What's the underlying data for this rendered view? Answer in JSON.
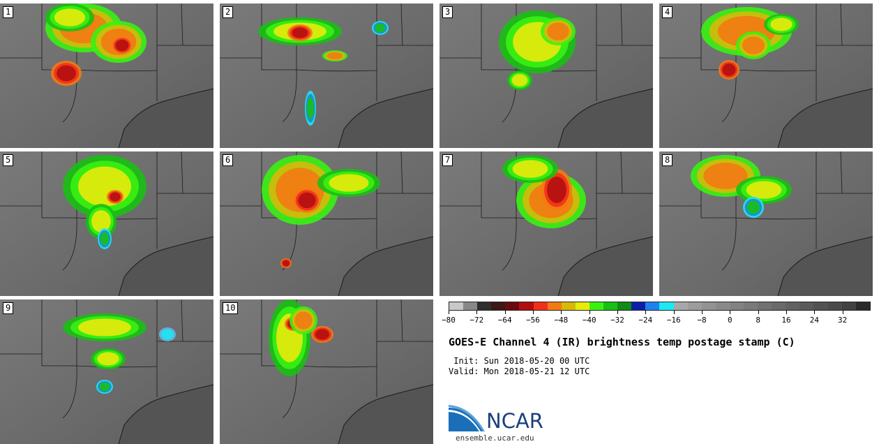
{
  "title": "GOES-E Channel 4 (IR) brightness temp postage stamp (C)",
  "init_line": " Init: Sun 2018-05-20 00 UTC",
  "valid_line": "Valid: Mon 2018-05-21 12 UTC",
  "org_name": "NCAR",
  "site": "ensemble.ucar.edu",
  "colorbar": {
    "min": -80,
    "max": 40,
    "step": 4,
    "colors": [
      "#c8c8c8",
      "#888888",
      "#2e2e2e",
      "#3c1717",
      "#6a0a0a",
      "#b10f0f",
      "#f2301a",
      "#f27a12",
      "#d6b90b",
      "#e8ea0c",
      "#39f212",
      "#18c012",
      "#108a18",
      "#0f1ea8",
      "#1e82ee",
      "#1de8f0",
      "#a8a8a8",
      "#9c9c9c",
      "#939393",
      "#8a8a8a",
      "#828282",
      "#7a7a7a",
      "#727272",
      "#6a6a6a",
      "#626262",
      "#5a5a5a",
      "#525252",
      "#4a4a4a",
      "#424242",
      "#2a2a2a"
    ],
    "tick_labels": [
      "−80",
      "−72",
      "−64",
      "−56",
      "−48",
      "−40",
      "−32",
      "−24",
      "−16",
      "−8",
      "0",
      "8",
      "16",
      "24",
      "32"
    ]
  },
  "panels": [
    {
      "label": "1"
    },
    {
      "label": "2"
    },
    {
      "label": "3"
    },
    {
      "label": "4"
    },
    {
      "label": "5"
    },
    {
      "label": "6"
    },
    {
      "label": "7"
    },
    {
      "label": "8"
    },
    {
      "label": "9"
    },
    {
      "label": "10"
    }
  ]
}
